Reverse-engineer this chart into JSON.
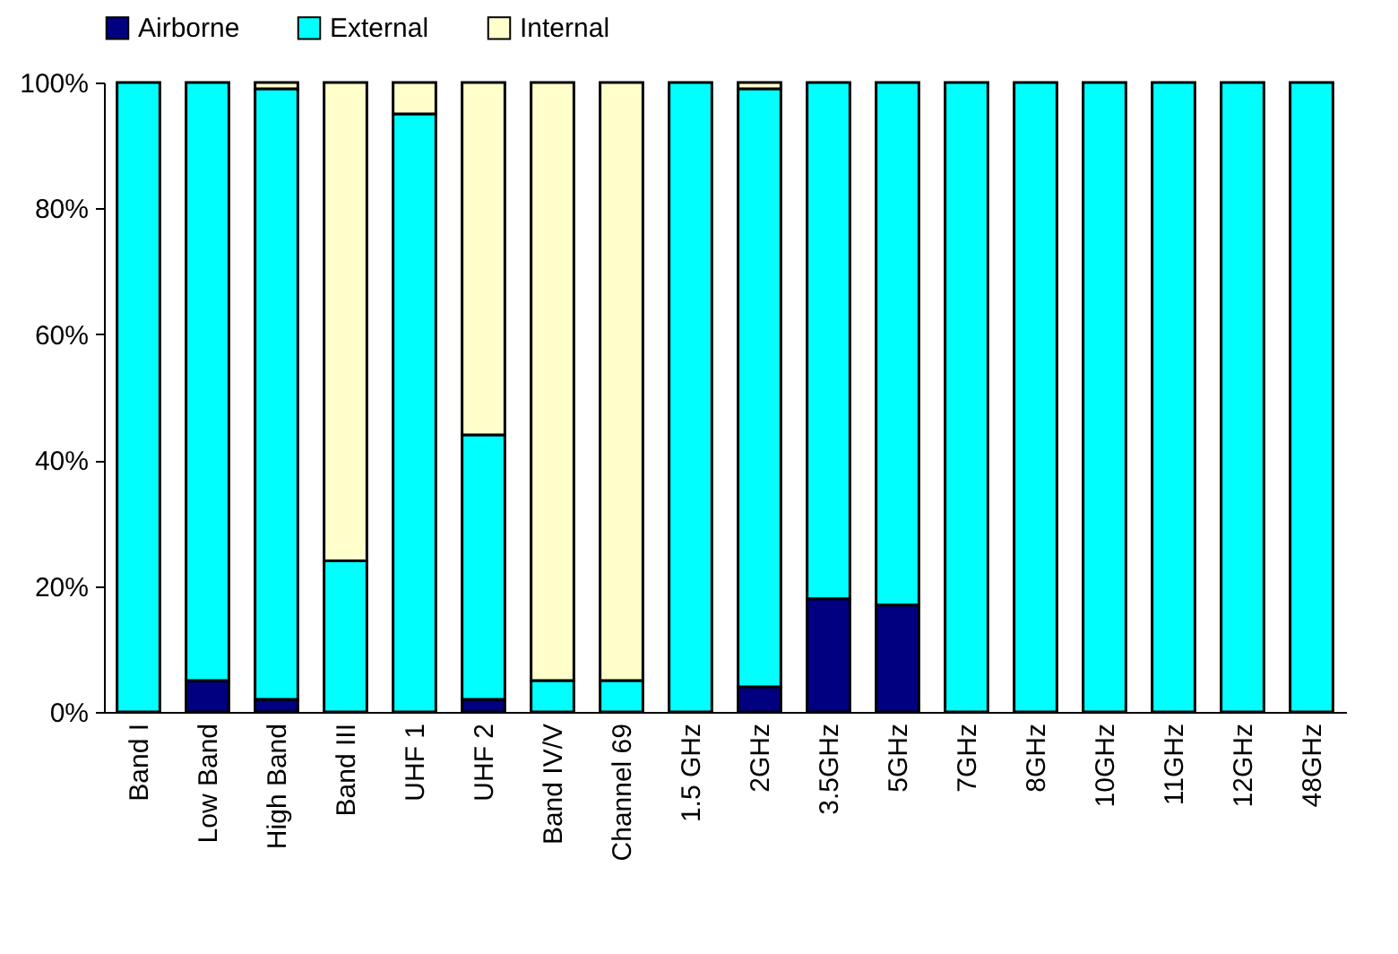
{
  "chart_data": {
    "type": "bar",
    "stacked": true,
    "legend": "top",
    "grid": false,
    "categories": [
      "Band I",
      "Low Band",
      "High Band",
      "Band III",
      "UHF 1",
      "UHF 2",
      "Band IV/V",
      "Channel 69",
      "1.5 GHz",
      "2GHz",
      "3.5GHz",
      "5GHz",
      "7GHz",
      "8GHz",
      "10GHz",
      "11GHz",
      "12GHz",
      "48GHz"
    ],
    "series": [
      {
        "name": "Airborne",
        "color": "#000080",
        "values": [
          null,
          5,
          2,
          null,
          null,
          2,
          null,
          null,
          null,
          4,
          18,
          17,
          null,
          null,
          null,
          null,
          null,
          null
        ]
      },
      {
        "name": "External",
        "color": "#00ffff",
        "values": [
          100,
          95,
          97,
          24,
          95,
          42,
          5,
          5,
          100,
          95,
          82,
          83,
          100,
          100,
          100,
          100,
          100,
          100
        ]
      },
      {
        "name": "Internal",
        "color": "#ffffcc",
        "values": [
          null,
          null,
          1,
          76,
          5,
          56,
          95,
          95,
          null,
          1,
          null,
          null,
          null,
          null,
          null,
          null,
          null,
          null
        ]
      }
    ],
    "ylim": [
      0,
      100
    ],
    "yticks": [
      {
        "value": 0,
        "label": "0%"
      },
      {
        "value": 20,
        "label": "20%"
      },
      {
        "value": 40,
        "label": "40%"
      },
      {
        "value": 60,
        "label": "60%"
      },
      {
        "value": 80,
        "label": "80%"
      },
      {
        "value": 100,
        "label": "100%"
      }
    ]
  }
}
